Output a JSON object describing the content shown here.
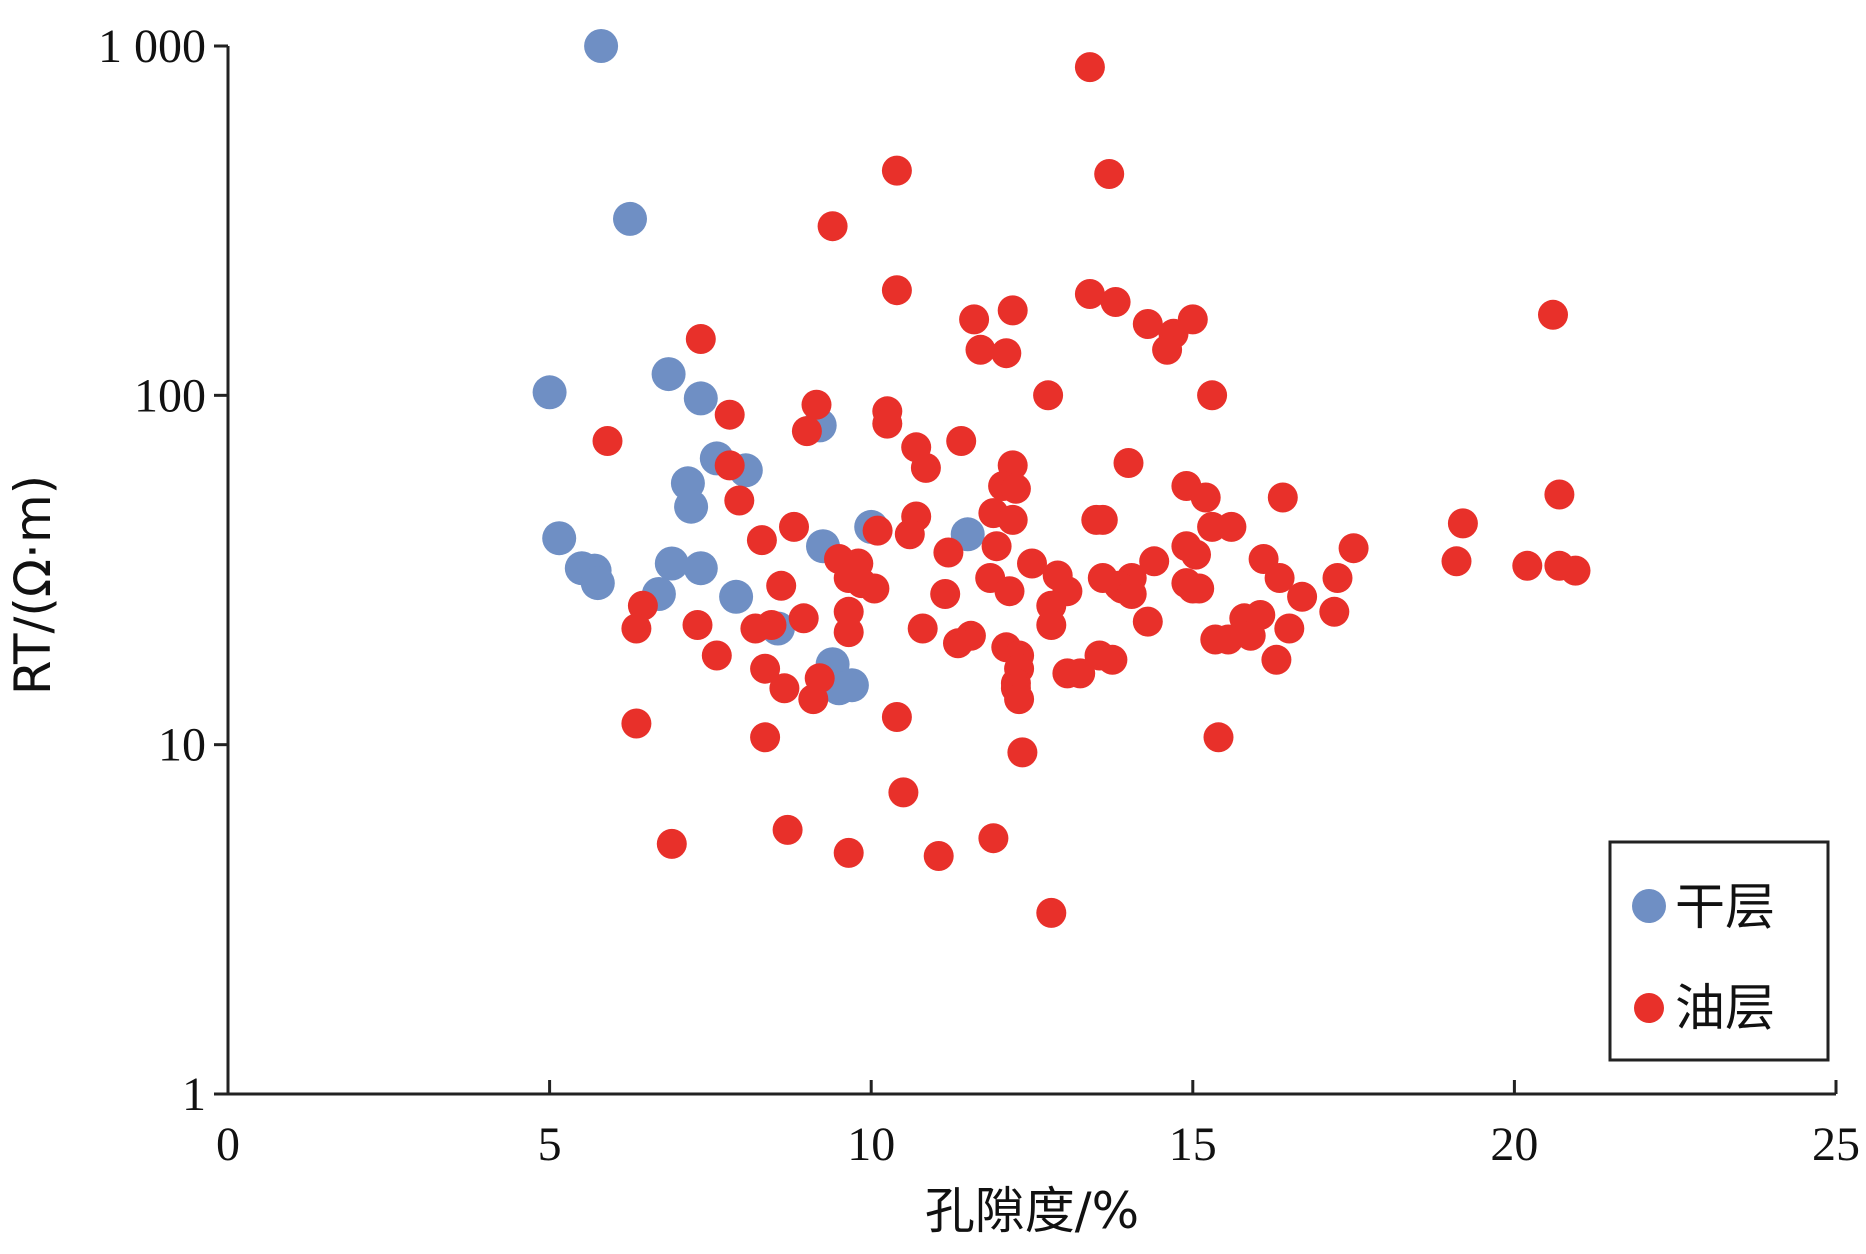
{
  "chart_data": {
    "type": "scatter",
    "xlabel": "孔隙度/%",
    "ylabel": "RT/(Ω·m)",
    "xlim": [
      0,
      25
    ],
    "ylim": [
      1,
      1000
    ],
    "yscale": "log",
    "x_ticks": [
      0,
      5,
      10,
      15,
      20,
      25
    ],
    "x_tick_labels": [
      "0",
      "5",
      "10",
      "15",
      "20",
      "25"
    ],
    "y_ticks": [
      1,
      10,
      100,
      1000
    ],
    "y_tick_labels": [
      "1",
      "10",
      "100",
      "1 000"
    ],
    "grid": false,
    "legend_position": "bottom-right",
    "series": [
      {
        "name": "干层",
        "color": "#6f8fc4",
        "points": [
          [
            5.8,
            1000
          ],
          [
            6.25,
            320
          ],
          [
            5.0,
            102
          ],
          [
            6.85,
            115
          ],
          [
            7.35,
            98
          ],
          [
            9.2,
            82
          ],
          [
            7.6,
            66
          ],
          [
            8.05,
            61
          ],
          [
            7.15,
            56
          ],
          [
            7.2,
            48
          ],
          [
            10.0,
            42
          ],
          [
            11.5,
            40
          ],
          [
            5.15,
            39
          ],
          [
            9.25,
            37
          ],
          [
            6.9,
            33
          ],
          [
            7.35,
            32
          ],
          [
            5.5,
            32
          ],
          [
            5.7,
            31.5
          ],
          [
            5.75,
            29
          ],
          [
            6.7,
            27
          ],
          [
            7.9,
            26.5
          ],
          [
            8.55,
            21.5
          ],
          [
            9.4,
            17
          ],
          [
            9.5,
            14.5
          ],
          [
            9.7,
            14.8
          ]
        ]
      },
      {
        "name": "油层",
        "color": "#e8302a",
        "points": [
          [
            13.4,
            870
          ],
          [
            10.4,
            440
          ],
          [
            13.7,
            430
          ],
          [
            9.4,
            305
          ],
          [
            10.4,
            200
          ],
          [
            13.4,
            195
          ],
          [
            13.8,
            185
          ],
          [
            12.2,
            175
          ],
          [
            20.6,
            170
          ],
          [
            11.6,
            165
          ],
          [
            15.0,
            165
          ],
          [
            14.3,
            160
          ],
          [
            14.7,
            150
          ],
          [
            11.7,
            135
          ],
          [
            12.1,
            132
          ],
          [
            14.6,
            135
          ],
          [
            7.35,
            145
          ],
          [
            12.75,
            100
          ],
          [
            15.3,
            100
          ],
          [
            9.15,
            94
          ],
          [
            7.8,
            88
          ],
          [
            10.25,
            90
          ],
          [
            10.25,
            83
          ],
          [
            9.0,
            79
          ],
          [
            5.9,
            74
          ],
          [
            11.4,
            74
          ],
          [
            10.7,
            71
          ],
          [
            14.0,
            64
          ],
          [
            7.8,
            63
          ],
          [
            10.85,
            62
          ],
          [
            12.2,
            63
          ],
          [
            12.05,
            55
          ],
          [
            14.9,
            55
          ],
          [
            12.25,
            54
          ],
          [
            15.2,
            51
          ],
          [
            16.4,
            51
          ],
          [
            20.7,
            52
          ],
          [
            7.95,
            50
          ],
          [
            10.7,
            45
          ],
          [
            11.9,
            46
          ],
          [
            13.5,
            44
          ],
          [
            13.6,
            44
          ],
          [
            12.2,
            44
          ],
          [
            8.8,
            42
          ],
          [
            10.1,
            41
          ],
          [
            10.6,
            40
          ],
          [
            15.3,
            42
          ],
          [
            15.6,
            42
          ],
          [
            19.2,
            43
          ],
          [
            8.3,
            38.5
          ],
          [
            14.9,
            37
          ],
          [
            11.95,
            37
          ],
          [
            11.2,
            35.5
          ],
          [
            15.05,
            35
          ],
          [
            17.5,
            36.5
          ],
          [
            9.5,
            34
          ],
          [
            9.8,
            33
          ],
          [
            12.5,
            33
          ],
          [
            14.4,
            33.5
          ],
          [
            16.1,
            34
          ],
          [
            19.1,
            33.5
          ],
          [
            20.2,
            32.5
          ],
          [
            20.7,
            32.5
          ],
          [
            20.95,
            31.5
          ],
          [
            12.9,
            30.5
          ],
          [
            13.6,
            30
          ],
          [
            14.05,
            30
          ],
          [
            11.85,
            30
          ],
          [
            16.35,
            30
          ],
          [
            17.25,
            30
          ],
          [
            9.65,
            30
          ],
          [
            9.85,
            29
          ],
          [
            14.9,
            29
          ],
          [
            13.85,
            28.5
          ],
          [
            13.9,
            28
          ],
          [
            15.0,
            28
          ],
          [
            15.1,
            28
          ],
          [
            8.6,
            28.5
          ],
          [
            10.05,
            28
          ],
          [
            12.15,
            27.5
          ],
          [
            13.05,
            27.5
          ],
          [
            14.05,
            27
          ],
          [
            11.15,
            27
          ],
          [
            16.7,
            26.5
          ],
          [
            6.45,
            25
          ],
          [
            12.8,
            25
          ],
          [
            17.2,
            24
          ],
          [
            9.65,
            24
          ],
          [
            8.95,
            23
          ],
          [
            15.8,
            23
          ],
          [
            16.05,
            23.5
          ],
          [
            14.3,
            22.5
          ],
          [
            12.8,
            22
          ],
          [
            8.45,
            22
          ],
          [
            8.2,
            21.5
          ],
          [
            7.3,
            22
          ],
          [
            6.35,
            21.5
          ],
          [
            9.65,
            21
          ],
          [
            10.8,
            21.5
          ],
          [
            11.55,
            20.5
          ],
          [
            15.35,
            20
          ],
          [
            15.55,
            20
          ],
          [
            15.9,
            20.5
          ],
          [
            16.5,
            21.5
          ],
          [
            11.35,
            19.5
          ],
          [
            12.1,
            19
          ],
          [
            12.3,
            18
          ],
          [
            7.6,
            18
          ],
          [
            13.55,
            18
          ],
          [
            13.75,
            17.5
          ],
          [
            16.3,
            17.5
          ],
          [
            12.3,
            16.5
          ],
          [
            8.35,
            16.5
          ],
          [
            13.05,
            16
          ],
          [
            13.25,
            16
          ],
          [
            12.25,
            15
          ],
          [
            9.2,
            15.5
          ],
          [
            12.25,
            14.5
          ],
          [
            8.65,
            14.5
          ],
          [
            9.1,
            13.5
          ],
          [
            12.3,
            13.5
          ],
          [
            10.4,
            12
          ],
          [
            6.35,
            11.5
          ],
          [
            8.35,
            10.5
          ],
          [
            15.4,
            10.5
          ],
          [
            12.35,
            9.5
          ],
          [
            10.5,
            7.3
          ],
          [
            8.7,
            5.7
          ],
          [
            11.9,
            5.4
          ],
          [
            6.9,
            5.2
          ],
          [
            9.65,
            4.9
          ],
          [
            11.05,
            4.8
          ],
          [
            12.8,
            3.3
          ]
        ]
      }
    ]
  }
}
